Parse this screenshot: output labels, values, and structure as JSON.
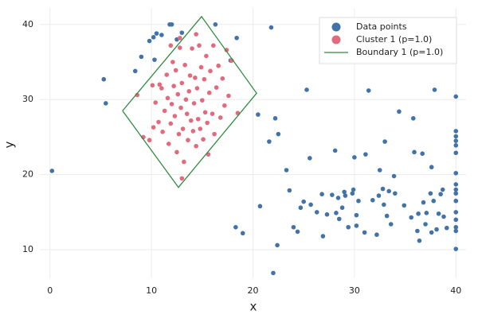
{
  "chart_data": {
    "type": "scatter",
    "x_label": "x",
    "y_label": "y",
    "xlim": [
      -1,
      41
    ],
    "ylim": [
      6.2,
      42.2
    ],
    "xticks": [
      0,
      10,
      20,
      30,
      40
    ],
    "yticks": [
      10,
      20,
      30,
      40
    ],
    "grid": true,
    "legend": "top-right",
    "series": [
      {
        "name": "Data points",
        "color": "#4273a8",
        "mode": "markers",
        "x": [
          0.2,
          5.3,
          5.5,
          8.4,
          9,
          9.8,
          10.2,
          10.5,
          11,
          10.3,
          11.8,
          12,
          12.5,
          13,
          16.3,
          18.4,
          17.8,
          21.8,
          20.5,
          22.2,
          21.6,
          22.5,
          20.7,
          18.3,
          19,
          22,
          22.4,
          23.3,
          23.6,
          24,
          24.4,
          24.7,
          25,
          25.3,
          25.6,
          25.7,
          26.3,
          26.8,
          26.9,
          27.3,
          27.8,
          28.1,
          28.2,
          28.4,
          28.5,
          28.8,
          29,
          29.1,
          29.4,
          29.8,
          29.9,
          30,
          30.2,
          30.2,
          30.4,
          31,
          31.1,
          31.4,
          31.8,
          32.2,
          32.4,
          32.5,
          32.8,
          32.9,
          33,
          33.2,
          33.4,
          33.6,
          33.9,
          34,
          34.4,
          34.9,
          35.6,
          35.8,
          35.9,
          36.2,
          36.3,
          36.4,
          36.7,
          36.8,
          37,
          37.1,
          37.5,
          37.6,
          37.6,
          37.9,
          37.8,
          38.1,
          38.3,
          38.5,
          38.7,
          38.8,
          39.1,
          40,
          40,
          40,
          40,
          40,
          40,
          40,
          40,
          40,
          40,
          40,
          40,
          40,
          40,
          40,
          40
        ],
        "values": [
          20.5,
          32.7,
          29.5,
          33.8,
          35.7,
          37.8,
          38.3,
          38.8,
          38.6,
          35.3,
          40,
          40,
          38,
          38.9,
          40,
          38.2,
          35.2,
          39.6,
          28,
          27.5,
          24.4,
          25.4,
          15.8,
          13,
          12.2,
          6.9,
          10.6,
          20.6,
          17.9,
          13,
          12.4,
          15.6,
          16.4,
          31.3,
          22.2,
          16,
          15,
          17.4,
          11.8,
          14.7,
          17.3,
          23.2,
          14.9,
          16.9,
          14.1,
          15.6,
          17.7,
          17.2,
          13,
          17.5,
          18,
          22.3,
          14.6,
          13.2,
          16.5,
          12.3,
          22.7,
          31.2,
          16.6,
          12,
          17.2,
          20.6,
          18.1,
          16,
          24.4,
          14.5,
          17.8,
          13.4,
          19.8,
          17.5,
          28.4,
          15.9,
          14.3,
          27.5,
          23,
          12.5,
          14.8,
          11.2,
          22.8,
          16.3,
          13.4,
          14.9,
          17.5,
          12.3,
          21,
          31.3,
          16.5,
          12.7,
          14.8,
          17.4,
          18,
          14.4,
          12.9,
          30.4,
          25.8,
          25.1,
          24.5,
          23.9,
          22.9,
          20.2,
          18.7,
          18,
          17.5,
          16.5,
          15,
          14,
          13,
          12.5,
          10.1
        ]
      },
      {
        "name": "Cluster 1 (p=1.0)",
        "color": "#e26a7c",
        "mode": "markers",
        "x": [
          8.6,
          9.2,
          9.8,
          10.2,
          10.4,
          10.7,
          10.8,
          11,
          11.1,
          11.3,
          11.5,
          11.6,
          11.7,
          11.9,
          12,
          12.1,
          12.2,
          12.3,
          12.4,
          12.5,
          12.6,
          12.7,
          12.8,
          12.9,
          13,
          13.1,
          13.2,
          13.3,
          13.4,
          13.5,
          13.6,
          13.7,
          13.8,
          13.9,
          14,
          14.1,
          14.2,
          14.3,
          14.4,
          14.5,
          14.6,
          14.7,
          14.8,
          14.9,
          15,
          15.1,
          15.2,
          15.3,
          15.4,
          15.5,
          15.6,
          15.7,
          15.8,
          16,
          16.1,
          16.2,
          16.4,
          16.6,
          16.8,
          17,
          17.2,
          17.4,
          17.6,
          17.9,
          18.5,
          13,
          12.8,
          10.1,
          11.9,
          14.4
        ],
        "values": [
          30.6,
          25,
          24.6,
          26.3,
          29.6,
          27,
          32,
          31.5,
          25.7,
          28.5,
          33.3,
          30.2,
          24.1,
          26.8,
          29.4,
          35,
          31.8,
          27.8,
          33.9,
          23,
          30.7,
          25.4,
          36.9,
          28.9,
          32.2,
          26.1,
          21.7,
          34.6,
          30,
          28.1,
          24.6,
          31.1,
          33.2,
          27.2,
          36.8,
          25.8,
          29.5,
          32.9,
          23.8,
          31.5,
          27.4,
          37.2,
          26.1,
          34.3,
          29.9,
          24.7,
          32.7,
          28.3,
          35.8,
          26.9,
          22.7,
          30.9,
          33.8,
          28.1,
          37.2,
          25.4,
          31.6,
          34.5,
          27.6,
          32.8,
          29.2,
          36.6,
          30.5,
          35.2,
          28.2,
          19.5,
          38.2,
          31.9,
          37.2,
          38.7
        ]
      },
      {
        "name": "Boundary 1 (p=1.0)",
        "color": "#2e8b3e",
        "mode": "line",
        "x": [
          7.15,
          14.94,
          20.36,
          12.66,
          7.15
        ],
        "values": [
          28.5,
          41.05,
          30.84,
          18.3,
          28.5
        ]
      }
    ]
  }
}
